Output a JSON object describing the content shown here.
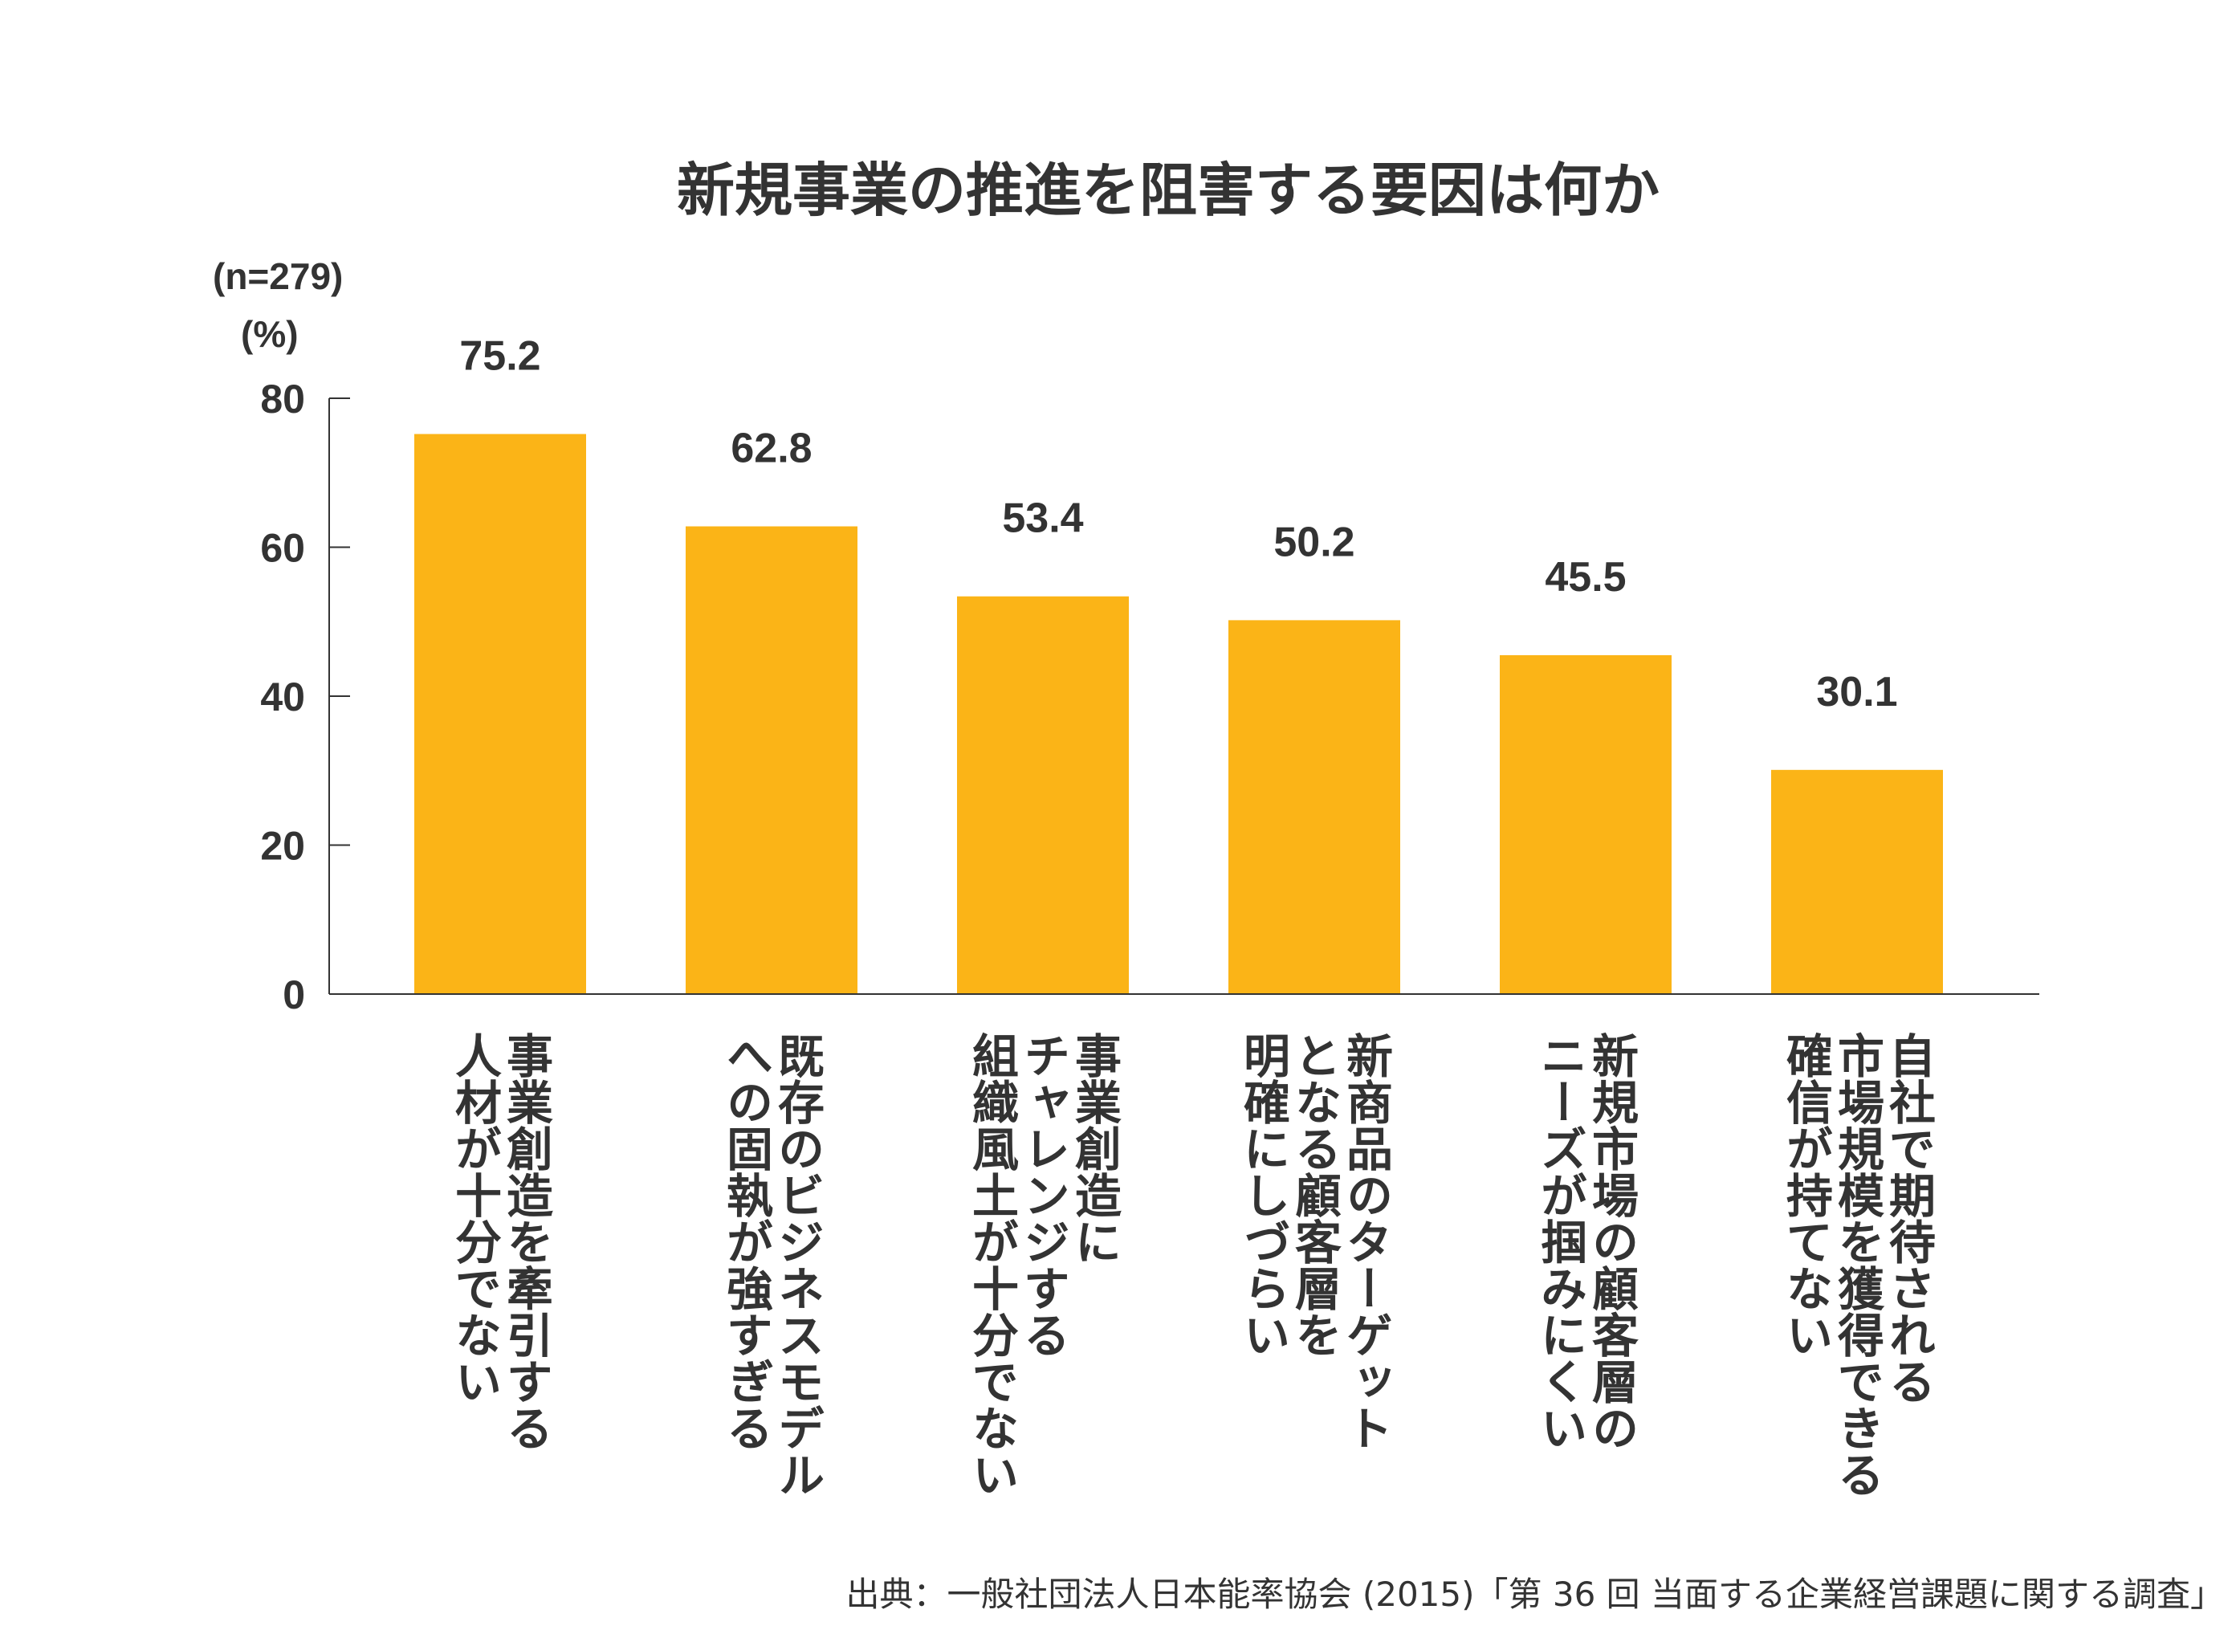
{
  "chart_data": {
    "type": "bar",
    "title": "新規事業の推進を阻害する要因は何か",
    "sample_note": "(n=279)",
    "unit_label": "(%)",
    "ylim": [
      0,
      80
    ],
    "yticks": [
      0,
      20,
      40,
      60,
      80
    ],
    "grid": false,
    "categories": [
      [
        "事業創造を牽引する",
        "人材が十分でない"
      ],
      [
        "既存のビジネスモデル",
        "への固執が強すぎる"
      ],
      [
        "事業創造に",
        "チャレンジする",
        "組織風土が十分でない"
      ],
      [
        "新商品のターゲット",
        "となる顧客層を",
        "明確にしづらい"
      ],
      [
        "新規市場の顧客層の",
        "ニーズが掴みにくい"
      ],
      [
        "自社で期待される",
        "市場規模を獲得できる",
        "確信が持てない"
      ]
    ],
    "values": [
      75.2,
      62.8,
      53.4,
      50.2,
      45.5,
      30.1
    ],
    "value_labels": [
      "75.2",
      "62.8",
      "53.4",
      "50.2",
      "45.5",
      "30.1"
    ],
    "bar_color": "#FBB417",
    "axis_color": "#333333",
    "text_color": "#333333",
    "source": "出典：一般社団法人日本能率協会 (2015)「第 36 回 当面する企業経営課題に関する調査」"
  }
}
